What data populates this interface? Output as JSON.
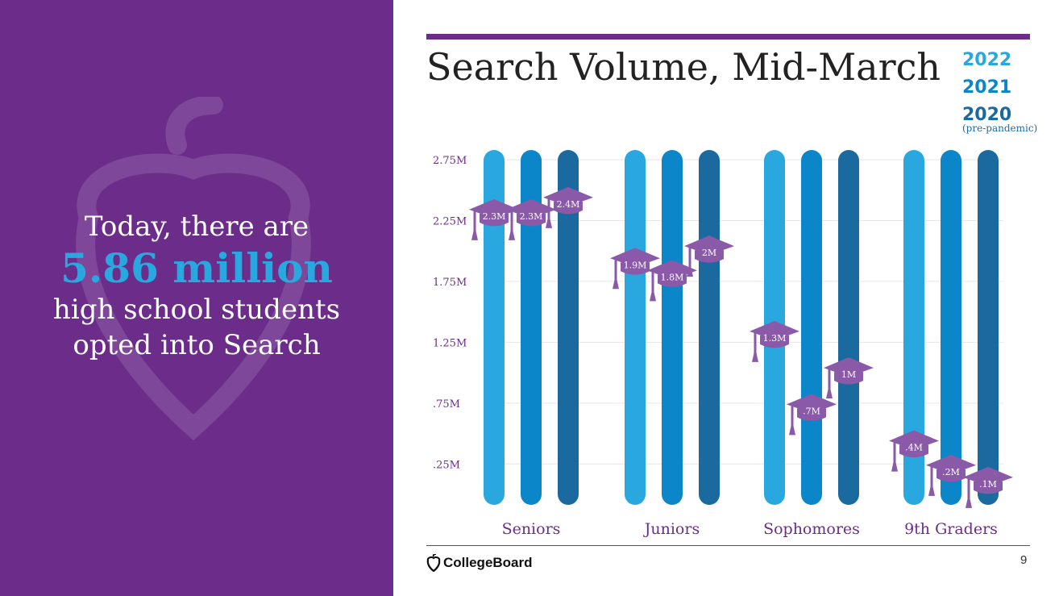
{
  "callout": {
    "line1": "Today, there are",
    "highlight": "5.86 million",
    "line3a": "high school students",
    "line3b": "opted into Search"
  },
  "legend": {
    "items": [
      {
        "label": "2022",
        "color": "#29a8e0"
      },
      {
        "label": "2021",
        "color": "#0a86c9"
      },
      {
        "label": "2020",
        "color": "#1a6aa0"
      }
    ],
    "note": "(pre-pandemic)"
  },
  "footer": {
    "logo_text": "CollegeBoard",
    "page_number": "9"
  },
  "colors": {
    "purple": "#6b2c8a",
    "cap": "#8a5aa8"
  },
  "chart_data": {
    "type": "bar",
    "title": "Search Volume, Mid-March",
    "categories": [
      "Seniors",
      "Juniors",
      "Sophomores",
      "9th Graders"
    ],
    "series": [
      {
        "name": "2022",
        "values": [
          2.3,
          1.9,
          1.3,
          0.4
        ],
        "labels": [
          "2.3M",
          "1.9M",
          "1.3M",
          ".4M"
        ]
      },
      {
        "name": "2021",
        "values": [
          2.3,
          1.8,
          0.7,
          0.2
        ],
        "labels": [
          "2.3M",
          "1.8M",
          ".7M",
          ".2M"
        ]
      },
      {
        "name": "2020",
        "values": [
          2.4,
          2.0,
          1.0,
          0.1
        ],
        "labels": [
          "2.4M",
          "2M",
          "1M",
          ".1M"
        ]
      }
    ],
    "yticks": [
      {
        "value": 0.25,
        "label": ".25M"
      },
      {
        "value": 0.75,
        "label": ".75M"
      },
      {
        "value": 1.25,
        "label": "1.25M"
      },
      {
        "value": 1.75,
        "label": "1.75M"
      },
      {
        "value": 2.25,
        "label": "2.25M"
      },
      {
        "value": 2.75,
        "label": "2.75M"
      }
    ],
    "ylim": [
      0,
      2.75
    ],
    "grid": true,
    "legend_position": "top-right"
  }
}
